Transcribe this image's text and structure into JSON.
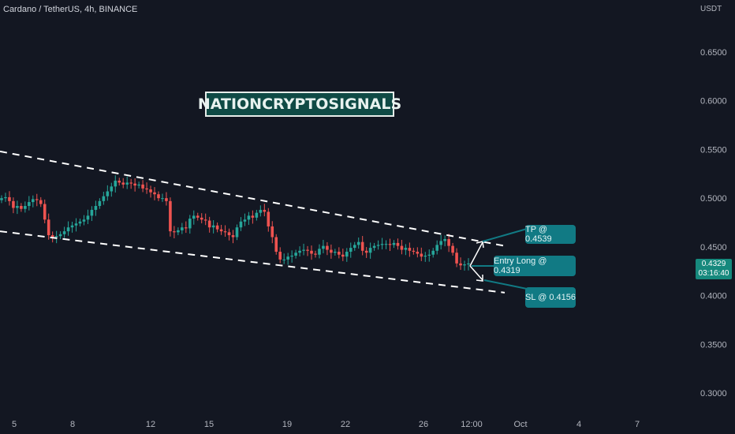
{
  "header": {
    "symbol_line": "Cardano / TetherUS, 4h, BINANCE",
    "currency": "USDT"
  },
  "brand": {
    "text": "NATIONCRYPTOSIGNALS"
  },
  "callouts": {
    "tp": "TP @ 0.4539",
    "entry": "Entry Long @ 0.4319",
    "sl": "SL @ 0.4156"
  },
  "price_tag": {
    "price": "0.4329",
    "countdown": "03:16:40"
  },
  "colors": {
    "up": "#26a69a",
    "down": "#ef5350",
    "background": "#131722",
    "callout": "#117a84"
  },
  "chart_data": {
    "type": "candlestick",
    "y_ticks": [
      "0.6500",
      "0.6000",
      "0.5500",
      "0.5000",
      "0.4500",
      "0.4000",
      "0.3500",
      "0.3000"
    ],
    "x_ticks": [
      "5",
      "8",
      "12",
      "15",
      "19",
      "22",
      "26",
      "12:00",
      "Oct",
      "4",
      "7"
    ],
    "ylim": [
      0.27,
      0.69
    ],
    "close_series": [
      0.5,
      0.501,
      0.497,
      0.49,
      0.492,
      0.489,
      0.492,
      0.496,
      0.499,
      0.498,
      0.494,
      0.478,
      0.462,
      0.46,
      0.461,
      0.463,
      0.466,
      0.47,
      0.472,
      0.474,
      0.476,
      0.478,
      0.482,
      0.488,
      0.492,
      0.497,
      0.502,
      0.507,
      0.512,
      0.518,
      0.516,
      0.514,
      0.516,
      0.515,
      0.513,
      0.514,
      0.51,
      0.509,
      0.506,
      0.504,
      0.5,
      0.5,
      0.497,
      0.466,
      0.465,
      0.467,
      0.47,
      0.469,
      0.479,
      0.482,
      0.48,
      0.478,
      0.477,
      0.47,
      0.472,
      0.468,
      0.466,
      0.465,
      0.462,
      0.46,
      0.47,
      0.476,
      0.478,
      0.482,
      0.48,
      0.485,
      0.488,
      0.486,
      0.471,
      0.46,
      0.445,
      0.437,
      0.437,
      0.44,
      0.441,
      0.444,
      0.446,
      0.447,
      0.446,
      0.443,
      0.442,
      0.448,
      0.451,
      0.447,
      0.444,
      0.445,
      0.442,
      0.44,
      0.445,
      0.449,
      0.452,
      0.455,
      0.446,
      0.444,
      0.449,
      0.451,
      0.452,
      0.453,
      0.453,
      0.452,
      0.454,
      0.451,
      0.447,
      0.449,
      0.446,
      0.445,
      0.443,
      0.44,
      0.441,
      0.442,
      0.446,
      0.452,
      0.456,
      0.458,
      0.451,
      0.444,
      0.433,
      0.431,
      0.432,
      0.433
    ],
    "channel_upper": [
      [
        0,
        0.548
      ],
      [
        640,
        0.451
      ]
    ],
    "channel_lower": [
      [
        0,
        0.466
      ],
      [
        640,
        0.403
      ]
    ]
  }
}
